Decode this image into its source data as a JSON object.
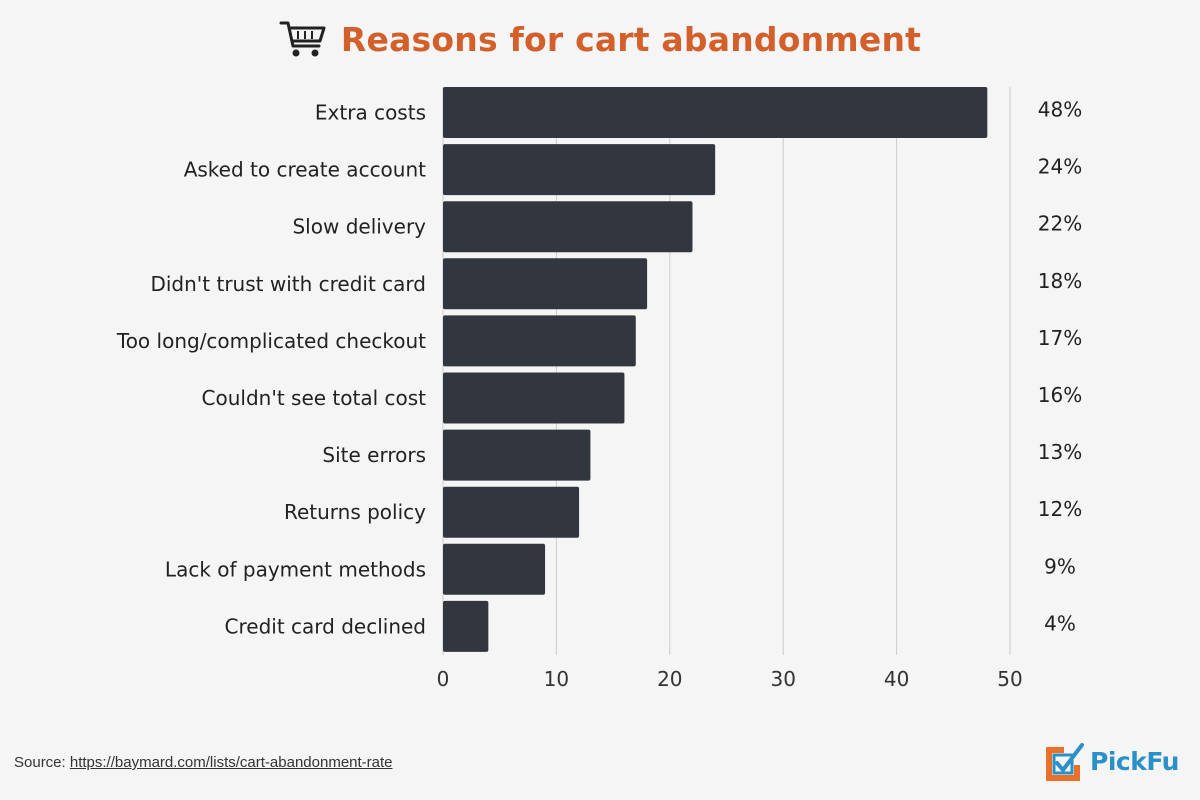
{
  "header": {
    "title": "Reasons for cart abandonment",
    "icon": "shopping-cart-icon"
  },
  "footer": {
    "source_label": "Source:",
    "source_link": "https://baymard.com/lists/cart-abandonment-rate",
    "logo_text": "PickFu"
  },
  "colors": {
    "bar": "#32363f",
    "title": "#d35f2a",
    "logo": "#2a90c8",
    "logo_accent": "#e8702a",
    "grid": "#cccccc",
    "background": "#f5f5f5"
  },
  "chart_data": {
    "type": "bar",
    "orientation": "horizontal",
    "categories": [
      "Extra costs",
      "Asked to create account",
      "Slow delivery",
      "Didn't trust with credit card",
      "Too long/complicated checkout",
      "Couldn't see total cost",
      "Site errors",
      "Returns policy",
      "Lack of payment methods",
      "Credit card declined"
    ],
    "values": [
      48,
      24,
      22,
      18,
      17,
      16,
      13,
      12,
      9,
      4
    ],
    "value_labels": [
      "48%",
      "24%",
      "22%",
      "18%",
      "17%",
      "16%",
      "13%",
      "12%",
      "9%",
      "4%"
    ],
    "xlim": [
      0,
      50
    ],
    "xticks": [
      "0",
      "10",
      "20",
      "30",
      "40",
      "50"
    ],
    "grid": true,
    "title": "Reasons for cart abandonment"
  }
}
